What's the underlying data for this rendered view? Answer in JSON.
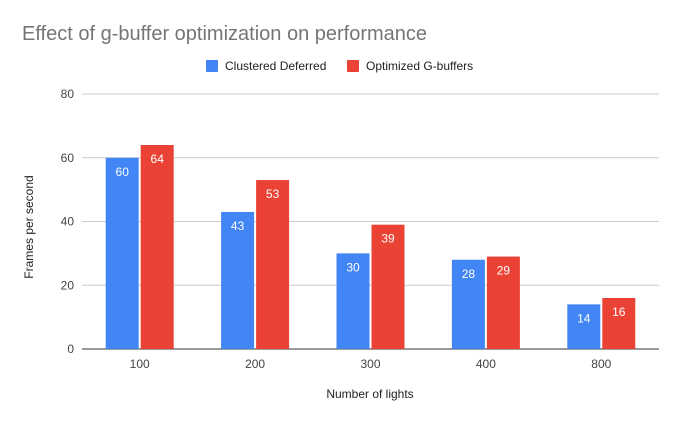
{
  "chart_data": {
    "type": "bar",
    "title": "Effect of g-buffer optimization on performance",
    "xlabel": "Number of lights",
    "ylabel": "Frames per second",
    "ylim": [
      0,
      80
    ],
    "yticks": [
      0,
      20,
      40,
      60,
      80
    ],
    "grid": true,
    "legend_position": "top",
    "categories": [
      "100",
      "200",
      "300",
      "400",
      "800"
    ],
    "series": [
      {
        "name": "Clustered Deferred",
        "color": "#4285f4",
        "values": [
          60,
          43,
          30,
          28,
          14
        ]
      },
      {
        "name": "Optimized G-buffers",
        "color": "#ea4335",
        "values": [
          64,
          53,
          39,
          29,
          16
        ]
      }
    ]
  }
}
